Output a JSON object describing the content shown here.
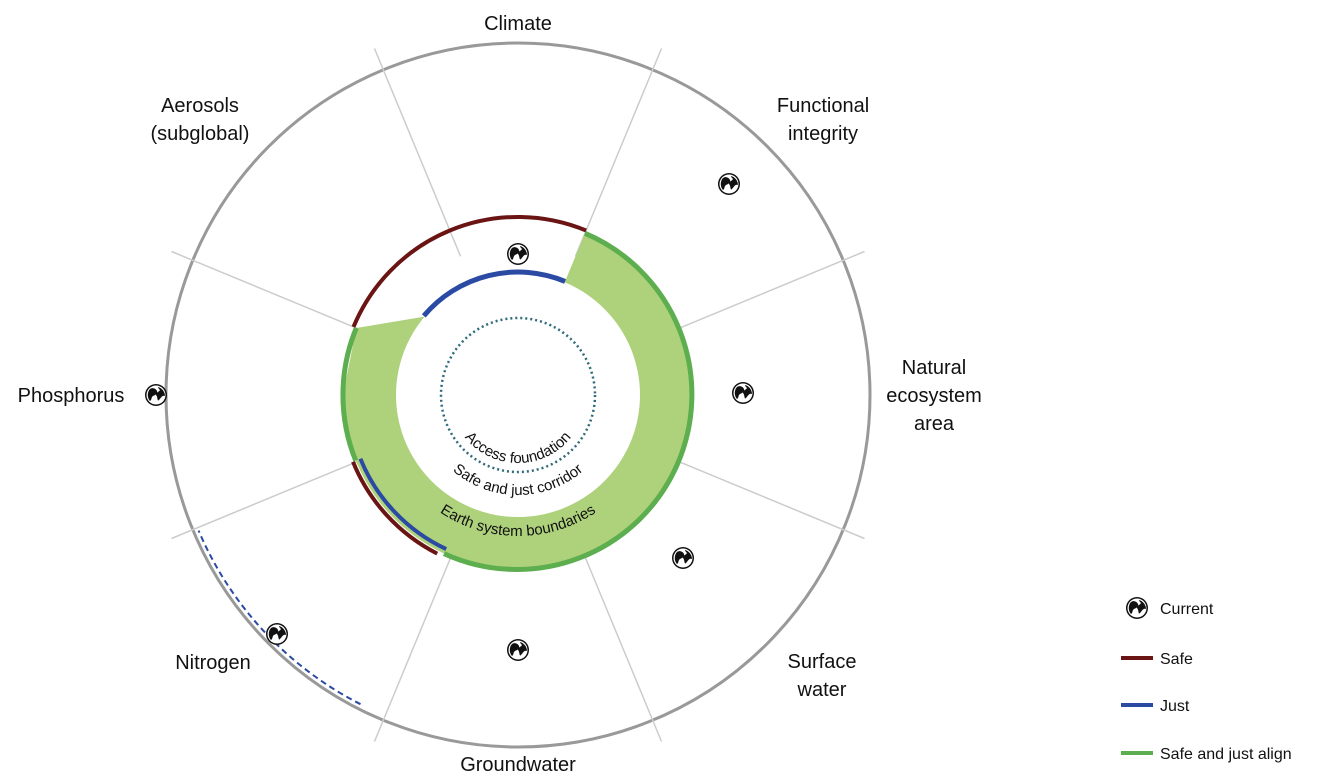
{
  "segments": [
    {
      "label": [
        "Climate"
      ]
    },
    {
      "label": [
        "Functional",
        "integrity"
      ]
    },
    {
      "label": [
        "Natural",
        "ecosystem",
        "area"
      ]
    },
    {
      "label": [
        "Surface",
        "water"
      ]
    },
    {
      "label": [
        "Groundwater"
      ]
    },
    {
      "label": [
        "Nitrogen"
      ]
    },
    {
      "label": [
        "Phosphorus"
      ]
    },
    {
      "label": [
        "Aerosols",
        "(subglobal)"
      ]
    }
  ],
  "inner_labels": {
    "access_foundation": "Access foundation",
    "corridor": "Safe and just corridor",
    "boundaries": "Earth system boundaries"
  },
  "legend": {
    "current": "Current",
    "safe": "Safe",
    "just": "Just",
    "align": "Safe and just align"
  },
  "colors": {
    "safe": "#6b1414",
    "just": "#2a4aa3",
    "align": "#5cae4f",
    "corridor_fill": "#aed17b",
    "outer_ring": "#999999",
    "divider": "#cccccc",
    "foundation": "#2f6a7d"
  },
  "icons": {
    "current": "globe-icon"
  }
}
